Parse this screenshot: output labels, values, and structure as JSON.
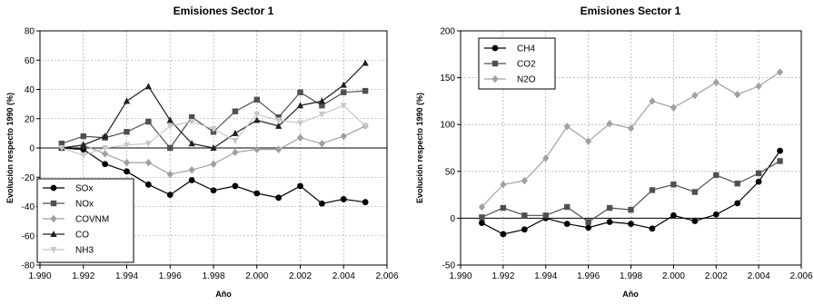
{
  "chart_data": [
    {
      "type": "line",
      "title": "Emisiones Sector 1",
      "xlabel": "Año",
      "ylabel": "Evolución respecto 1990 (%)",
      "xlim": [
        1990,
        2006
      ],
      "ylim": [
        -80,
        80
      ],
      "xticks": [
        1990,
        1992,
        1994,
        1996,
        1998,
        2000,
        2002,
        2004,
        2006
      ],
      "xtick_labels": [
        "1.990",
        "1.992",
        "1.994",
        "1.996",
        "1.998",
        "2.000",
        "2.002",
        "2.004",
        "2.006"
      ],
      "yticks": [
        -80,
        -60,
        -40,
        -20,
        0,
        20,
        40,
        60,
        80
      ],
      "ytick_labels": [
        "-80",
        "-60",
        "-40",
        "-20",
        "0",
        "20",
        "40",
        "60",
        "80"
      ],
      "grid": true,
      "legend_position": "bottom-left",
      "x": [
        1991,
        1992,
        1993,
        1994,
        1995,
        1996,
        1997,
        1998,
        1999,
        2000,
        2001,
        2002,
        2003,
        2004,
        2005
      ],
      "series": [
        {
          "name": "SOx",
          "marker": "circle",
          "color": "#000000",
          "values": [
            0,
            -1,
            -11,
            -16,
            -25,
            -32,
            -22,
            -29,
            -26,
            -31,
            -34,
            -26,
            -38,
            -35,
            -37
          ]
        },
        {
          "name": "NOx",
          "marker": "square",
          "color": "#505050",
          "values": [
            3,
            8,
            7,
            11,
            18,
            0,
            21,
            11,
            25,
            33,
            21,
            38,
            29,
            38,
            39
          ]
        },
        {
          "name": "COVNM",
          "marker": "diamond",
          "color": "#a0a0a0",
          "values": [
            0,
            2,
            -4,
            -10,
            -10,
            -18,
            -15,
            -11,
            -3,
            -1,
            -1,
            7,
            3,
            8,
            15
          ]
        },
        {
          "name": "CO",
          "marker": "triangle-up",
          "color": "#202020",
          "values": [
            0,
            2,
            8,
            32,
            42,
            19,
            3,
            0,
            10,
            19,
            15,
            29,
            32,
            43,
            58
          ]
        },
        {
          "name": "NH3",
          "marker": "triangle-down",
          "color": "#c8c8c8",
          "values": [
            0,
            -5,
            0,
            2,
            3,
            15,
            18,
            13,
            5,
            23,
            19,
            17,
            23,
            29,
            15
          ]
        }
      ]
    },
    {
      "type": "line",
      "title": "Emisiones Sector 1",
      "xlabel": "Año",
      "ylabel": "Evolución respecto 1990 (%)",
      "xlim": [
        1990,
        2006
      ],
      "ylim": [
        -50,
        200
      ],
      "xticks": [
        1990,
        1992,
        1994,
        1996,
        1998,
        2000,
        2002,
        2004,
        2006
      ],
      "xtick_labels": [
        "1.990",
        "1.992",
        "1.994",
        "1.996",
        "1.998",
        "2.000",
        "2.002",
        "2.004",
        "2.006"
      ],
      "yticks": [
        -50,
        0,
        50,
        100,
        150,
        200
      ],
      "ytick_labels": [
        "-50",
        "0",
        "50",
        "100",
        "150",
        "200"
      ],
      "grid": true,
      "legend_position": "top-left",
      "x": [
        1991,
        1992,
        1993,
        1994,
        1995,
        1996,
        1997,
        1998,
        1999,
        2000,
        2001,
        2002,
        2003,
        2004,
        2005
      ],
      "series": [
        {
          "name": "CH4",
          "marker": "circle",
          "color": "#000000",
          "values": [
            -5,
            -17,
            -12,
            0,
            -6,
            -10,
            -4,
            -6,
            -11,
            3,
            -3,
            4,
            16,
            39,
            72
          ]
        },
        {
          "name": "CO2",
          "marker": "square",
          "color": "#505050",
          "values": [
            1,
            11,
            3,
            3,
            12,
            -4,
            11,
            9,
            30,
            36,
            28,
            46,
            37,
            48,
            61
          ]
        },
        {
          "name": "N2O",
          "marker": "diamond",
          "color": "#a0a0a0",
          "values": [
            12,
            36,
            40,
            64,
            98,
            82,
            101,
            96,
            125,
            118,
            131,
            145,
            132,
            141,
            156
          ]
        }
      ]
    }
  ]
}
